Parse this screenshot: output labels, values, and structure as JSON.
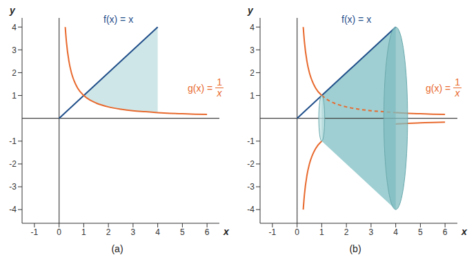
{
  "chart_data": [
    {
      "type": "line",
      "title": "(a)",
      "x_label": "x",
      "y_label": "y",
      "xlim": [
        -1.5,
        6.5
      ],
      "ylim": [
        -4.6,
        4.4
      ],
      "xticks": [
        -1,
        0,
        1,
        2,
        3,
        4,
        5,
        6
      ],
      "yticks": [
        -4,
        -3,
        -2,
        -1,
        1,
        2,
        3,
        4
      ],
      "grid": false,
      "series": [
        {
          "color": "#1f4e89",
          "line_style": "solid",
          "x": [
            0,
            4
          ],
          "values": [
            0,
            4
          ]
        },
        {
          "color": "#e8692d",
          "line_style": "solid",
          "x": [
            0.25,
            0.3,
            0.4,
            0.5,
            0.6,
            0.75,
            1,
            1.25,
            1.5,
            2,
            2.5,
            3,
            3.5,
            4,
            4.5,
            5,
            5.5,
            6
          ],
          "values": [
            4,
            3.33,
            2.5,
            2,
            1.67,
            1.33,
            1,
            0.8,
            0.67,
            0.5,
            0.4,
            0.33,
            0.29,
            0.25,
            0.22,
            0.2,
            0.18,
            0.17
          ]
        }
      ],
      "shaded": [
        {
          "color": "#cfe6e8",
          "x": [
            1,
            1.25,
            1.5,
            2,
            2.5,
            3,
            3.5,
            4
          ],
          "lower": [
            1,
            0.8,
            0.67,
            0.5,
            0.4,
            0.33,
            0.29,
            0.25
          ],
          "upper": [
            1,
            1.25,
            1.5,
            2,
            2.5,
            3,
            3.5,
            4
          ]
        }
      ],
      "ellipses": [],
      "annotations": [
        {
          "text": "f(x) = x",
          "color": "#1f4e89"
        },
        {
          "text": "g(x) =",
          "numerator": "1",
          "denominator": "x",
          "color": "#e8692d"
        }
      ]
    },
    {
      "type": "line",
      "title": "(b)",
      "x_label": "x",
      "y_label": "y",
      "xlim": [
        -1.5,
        6.5
      ],
      "ylim": [
        -4.6,
        4.4
      ],
      "xticks": [
        -1,
        0,
        1,
        2,
        3,
        4,
        5,
        6
      ],
      "yticks": [
        -4,
        -3,
        -2,
        -1,
        1,
        2,
        3,
        4
      ],
      "grid": false,
      "series": [
        {
          "color": "#1f4e89",
          "line_style": "solid",
          "x": [
            0,
            4
          ],
          "values": [
            0,
            4
          ]
        },
        {
          "color": "#e8692d",
          "line_style": "solid",
          "x": [
            0.25,
            0.3,
            0.4,
            0.5,
            0.6,
            0.75,
            1
          ],
          "values": [
            4,
            3.33,
            2.5,
            2,
            1.67,
            1.33,
            1
          ]
        },
        {
          "color": "#e8692d",
          "line_style": "dashed",
          "x": [
            1,
            1.25,
            1.5,
            2,
            2.5,
            3,
            3.5,
            4
          ],
          "values": [
            1,
            0.8,
            0.67,
            0.5,
            0.4,
            0.33,
            0.29,
            0.25
          ]
        },
        {
          "color": "#e8692d",
          "line_style": "solid",
          "x": [
            4,
            4.5,
            5,
            5.5,
            6
          ],
          "values": [
            0.25,
            0.22,
            0.2,
            0.18,
            0.17
          ]
        },
        {
          "color": "#e8692d",
          "line_style": "solid",
          "x": [
            0.25,
            0.3,
            0.4,
            0.5,
            0.6,
            0.75,
            1
          ],
          "values": [
            -4,
            -3.33,
            -2.5,
            -2,
            -1.67,
            -1.33,
            -1
          ]
        },
        {
          "color": "#e8692d",
          "line_style": "solid",
          "x": [
            4,
            4.5,
            5,
            5.5,
            6
          ],
          "values": [
            -0.25,
            -0.22,
            -0.2,
            -0.18,
            -0.17
          ]
        }
      ],
      "shaded": [
        {
          "color": "#9fcfd2",
          "x": [
            1,
            4
          ],
          "lower": [
            -1,
            -4
          ],
          "upper": [
            1,
            4
          ]
        }
      ],
      "ellipses": [
        {
          "x": 1,
          "radius": 1,
          "color": "#bfe0e2"
        },
        {
          "x": 4,
          "radius": 4,
          "color": "#7fbcc0"
        }
      ],
      "annotations": [
        {
          "text": "f(x) = x",
          "color": "#1f4e89"
        },
        {
          "text": "g(x) =",
          "numerator": "1",
          "denominator": "x",
          "color": "#e8692d"
        }
      ]
    }
  ]
}
